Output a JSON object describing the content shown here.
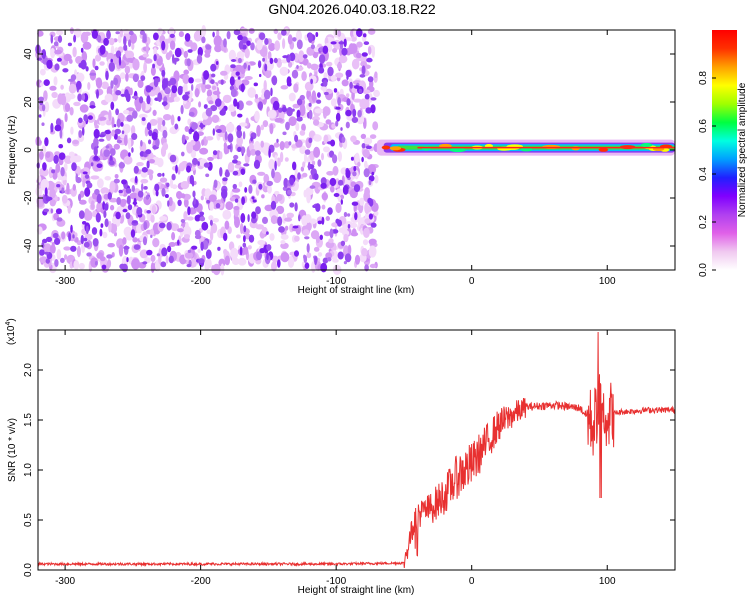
{
  "title": "GN04.2026.040.03.18.R22",
  "chart_data": [
    {
      "type": "heatmap",
      "xlabel": "Height of straight line (km)",
      "ylabel": "Frequency (Hz)",
      "xlim": [
        -320,
        150
      ],
      "ylim": [
        -50,
        50
      ],
      "xticks": [
        -300,
        -200,
        -100,
        0,
        100
      ],
      "yticks": [
        -40,
        -20,
        0,
        20,
        40
      ],
      "noise_region_x": [
        -320,
        -70
      ],
      "signal_ridge": {
        "x_range": [
          -70,
          150
        ],
        "frequency": 1,
        "peak_amplitude": 0.9
      },
      "colorbar": {
        "label": "Normalized spectral amplitude",
        "range": [
          0,
          1
        ],
        "ticks": [
          0.0,
          0.2,
          0.4,
          0.6,
          0.8
        ],
        "tick_labels": [
          "0.0",
          "0.2",
          "0.4",
          "0.6",
          "0.8"
        ],
        "colormap": [
          "#ffffff",
          "#f0c8f0",
          "#e060e8",
          "#b040f0",
          "#8000ff",
          "#2020ff",
          "#00a0ff",
          "#00ffe0",
          "#00ff40",
          "#a0ff00",
          "#ffff00",
          "#ffa000",
          "#ff3000",
          "#ff0000"
        ]
      }
    },
    {
      "type": "line",
      "xlabel": "Height of straight line (km)",
      "ylabel": "SNR (10 * v/v)",
      "scale_label": "(x10",
      "scale_exponent": "4",
      "xlim": [
        -320,
        150
      ],
      "ylim": [
        0,
        2.4
      ],
      "xticks": [
        -300,
        -200,
        -100,
        0,
        100
      ],
      "yticks": [
        0.0,
        0.5,
        1.0,
        1.5,
        2.0
      ],
      "ytick_labels": [
        "0.0",
        "0.5",
        "1.0",
        "1.5",
        "2.0"
      ],
      "color": "#e83030",
      "series": [
        {
          "name": "SNR",
          "x": [
            -320,
            -200,
            -100,
            -50,
            -45,
            -40,
            -30,
            -20,
            -10,
            0,
            10,
            20,
            30,
            40,
            60,
            80,
            90,
            95,
            100,
            110,
            130,
            150
          ],
          "y": [
            0.06,
            0.06,
            0.06,
            0.07,
            0.35,
            0.55,
            0.62,
            0.75,
            0.95,
            1.05,
            1.25,
            1.45,
            1.55,
            1.63,
            1.65,
            1.62,
            1.45,
            1.75,
            1.55,
            1.58,
            1.6,
            1.6
          ]
        }
      ]
    }
  ]
}
